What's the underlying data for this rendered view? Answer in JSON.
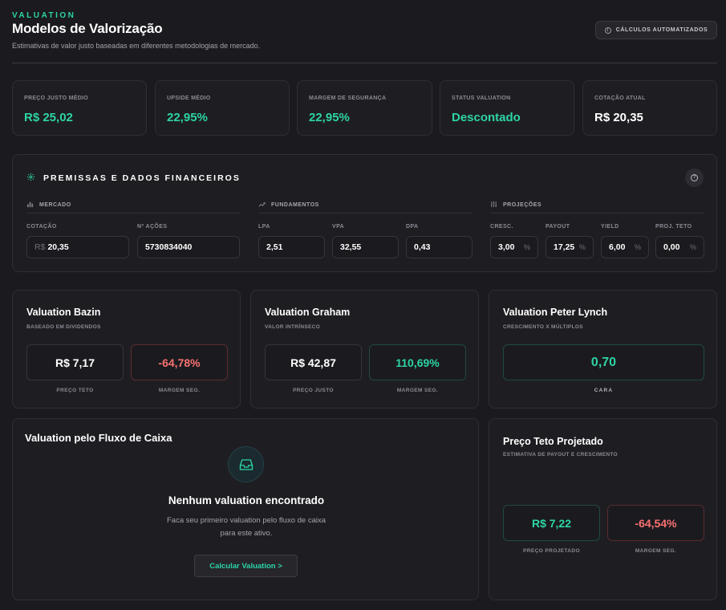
{
  "header": {
    "eyebrow": "VALUATION",
    "title": "Modelos de Valorização",
    "subtitle": "Estimativas de valor justo baseadas em diferentes metodologias de mercado.",
    "auto_badge": "CÁLCULOS AUTOMATIZADOS"
  },
  "stats": [
    {
      "label": "PREÇO JUSTO MÉDIO",
      "value": "R$ 25,02"
    },
    {
      "label": "UPSIDE MÉDIO",
      "value": "22,95%"
    },
    {
      "label": "MARGEM DE SEGURANÇA",
      "value": "22,95%"
    },
    {
      "label": "STATUS VALUATION",
      "value": "Descontado"
    },
    {
      "label": "COTAÇÃO ATUAL",
      "value": "R$ 20,35"
    }
  ],
  "premissas": {
    "title": "PREMISSAS E DADOS FINANCEIROS",
    "groups": {
      "mercado": {
        "label": "MERCADO",
        "fields": [
          {
            "label": "COTAÇÃO",
            "prefix": "R$",
            "value": "20,35"
          },
          {
            "label": "Nº AÇÕES",
            "value": "5730834040"
          }
        ]
      },
      "fundamentos": {
        "label": "FUNDAMENTOS",
        "fields": [
          {
            "label": "LPA",
            "value": "2,51"
          },
          {
            "label": "VPA",
            "value": "32,55"
          },
          {
            "label": "DPA",
            "value": "0,43"
          }
        ]
      },
      "projecoes": {
        "label": "PROJEÇÕES",
        "fields": [
          {
            "label": "CRESC.",
            "value": "3,00",
            "suffix": "%"
          },
          {
            "label": "PAYOUT",
            "value": "17,25",
            "suffix": "%"
          },
          {
            "label": "YIELD",
            "value": "6,00",
            "suffix": "%"
          },
          {
            "label": "PROJ. TETO",
            "value": "0,00",
            "suffix": "%"
          }
        ]
      }
    }
  },
  "bazin": {
    "title": "Valuation Bazin",
    "subtitle": "BASEADO EM DIVIDENDOS",
    "price": "R$ 7,17",
    "price_label": "PREÇO TETO",
    "margin": "-64,78%",
    "margin_label": "MARGEM SEG."
  },
  "graham": {
    "title": "Valuation Graham",
    "subtitle": "VALOR INTRÍNSECO",
    "price": "R$ 42,87",
    "price_label": "PREÇO JUSTO",
    "margin": "110,69%",
    "margin_label": "MARGEM SEG."
  },
  "lynch": {
    "title": "Valuation Peter Lynch",
    "subtitle": "CRESCIMENTO X MÚLTIPLOS",
    "value": "0,70",
    "value_label": "CARA"
  },
  "fluxo": {
    "title": "Valuation pelo Fluxo de Caixa",
    "empty_icon": "inbox-icon",
    "empty_title": "Nenhum valuation encontrado",
    "empty_text": "Faca seu primeiro valuation pelo fluxo de caixa para este ativo.",
    "button": "Calcular Valuation >"
  },
  "teto": {
    "title": "Preço Teto Projetado",
    "subtitle": "ESTIMATIVA DE PAYOUT E CRESCIMENTO",
    "price": "R$ 7,22",
    "price_label": "PREÇO PROJETADO",
    "margin": "-64,54%",
    "margin_label": "MARGEM SEG."
  },
  "colors": {
    "background": "#1b1b1f",
    "accent_green": "#2dd4a6",
    "negative_red": "#f87171",
    "card_border": "#2e2e34"
  }
}
